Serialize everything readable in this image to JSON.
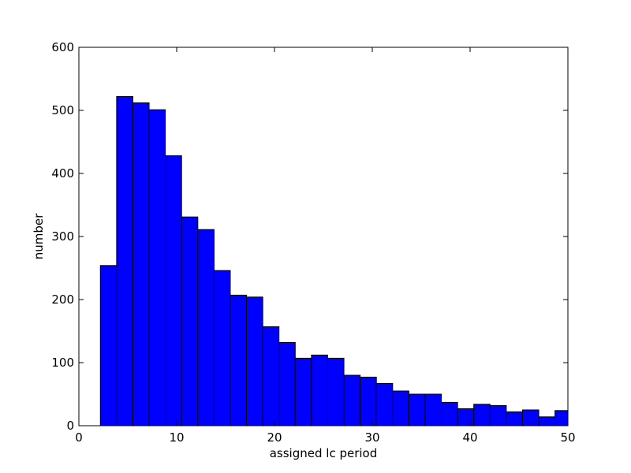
{
  "chart_data": {
    "type": "bar",
    "subtype": "histogram",
    "title": "",
    "xlabel": "assigned lc period",
    "ylabel": "number",
    "xlim": [
      0,
      50
    ],
    "ylim": [
      0,
      600
    ],
    "xticks": [
      0,
      10,
      20,
      30,
      40,
      50
    ],
    "yticks": [
      0,
      100,
      200,
      300,
      400,
      500,
      600
    ],
    "grid": false,
    "bar_color": "#0000ff",
    "edge_color": "#000000",
    "bins": [
      {
        "x0": 2.2,
        "x1": 3.86,
        "value": 254
      },
      {
        "x0": 3.86,
        "x1": 5.52,
        "value": 522
      },
      {
        "x0": 5.52,
        "x1": 7.18,
        "value": 512
      },
      {
        "x0": 7.18,
        "x1": 8.84,
        "value": 501
      },
      {
        "x0": 8.84,
        "x1": 10.5,
        "value": 428
      },
      {
        "x0": 10.5,
        "x1": 12.16,
        "value": 331
      },
      {
        "x0": 12.16,
        "x1": 13.82,
        "value": 311
      },
      {
        "x0": 13.82,
        "x1": 15.48,
        "value": 246
      },
      {
        "x0": 15.48,
        "x1": 17.14,
        "value": 207
      },
      {
        "x0": 17.14,
        "x1": 18.8,
        "value": 204
      },
      {
        "x0": 18.8,
        "x1": 20.46,
        "value": 157
      },
      {
        "x0": 20.46,
        "x1": 22.12,
        "value": 132
      },
      {
        "x0": 22.12,
        "x1": 23.78,
        "value": 107
      },
      {
        "x0": 23.78,
        "x1": 25.44,
        "value": 112
      },
      {
        "x0": 25.44,
        "x1": 27.1,
        "value": 107
      },
      {
        "x0": 27.1,
        "x1": 28.76,
        "value": 80
      },
      {
        "x0": 28.76,
        "x1": 30.42,
        "value": 77
      },
      {
        "x0": 30.42,
        "x1": 32.08,
        "value": 67
      },
      {
        "x0": 32.08,
        "x1": 33.74,
        "value": 55
      },
      {
        "x0": 33.74,
        "x1": 35.4,
        "value": 50
      },
      {
        "x0": 35.4,
        "x1": 37.06,
        "value": 50
      },
      {
        "x0": 37.06,
        "x1": 38.72,
        "value": 37
      },
      {
        "x0": 38.72,
        "x1": 40.38,
        "value": 27
      },
      {
        "x0": 40.38,
        "x1": 42.04,
        "value": 34
      },
      {
        "x0": 42.04,
        "x1": 43.7,
        "value": 32
      },
      {
        "x0": 43.7,
        "x1": 45.36,
        "value": 22
      },
      {
        "x0": 45.36,
        "x1": 47.02,
        "value": 25
      },
      {
        "x0": 47.02,
        "x1": 48.68,
        "value": 14
      },
      {
        "x0": 48.68,
        "x1": 50.34,
        "value": 24
      }
    ]
  }
}
